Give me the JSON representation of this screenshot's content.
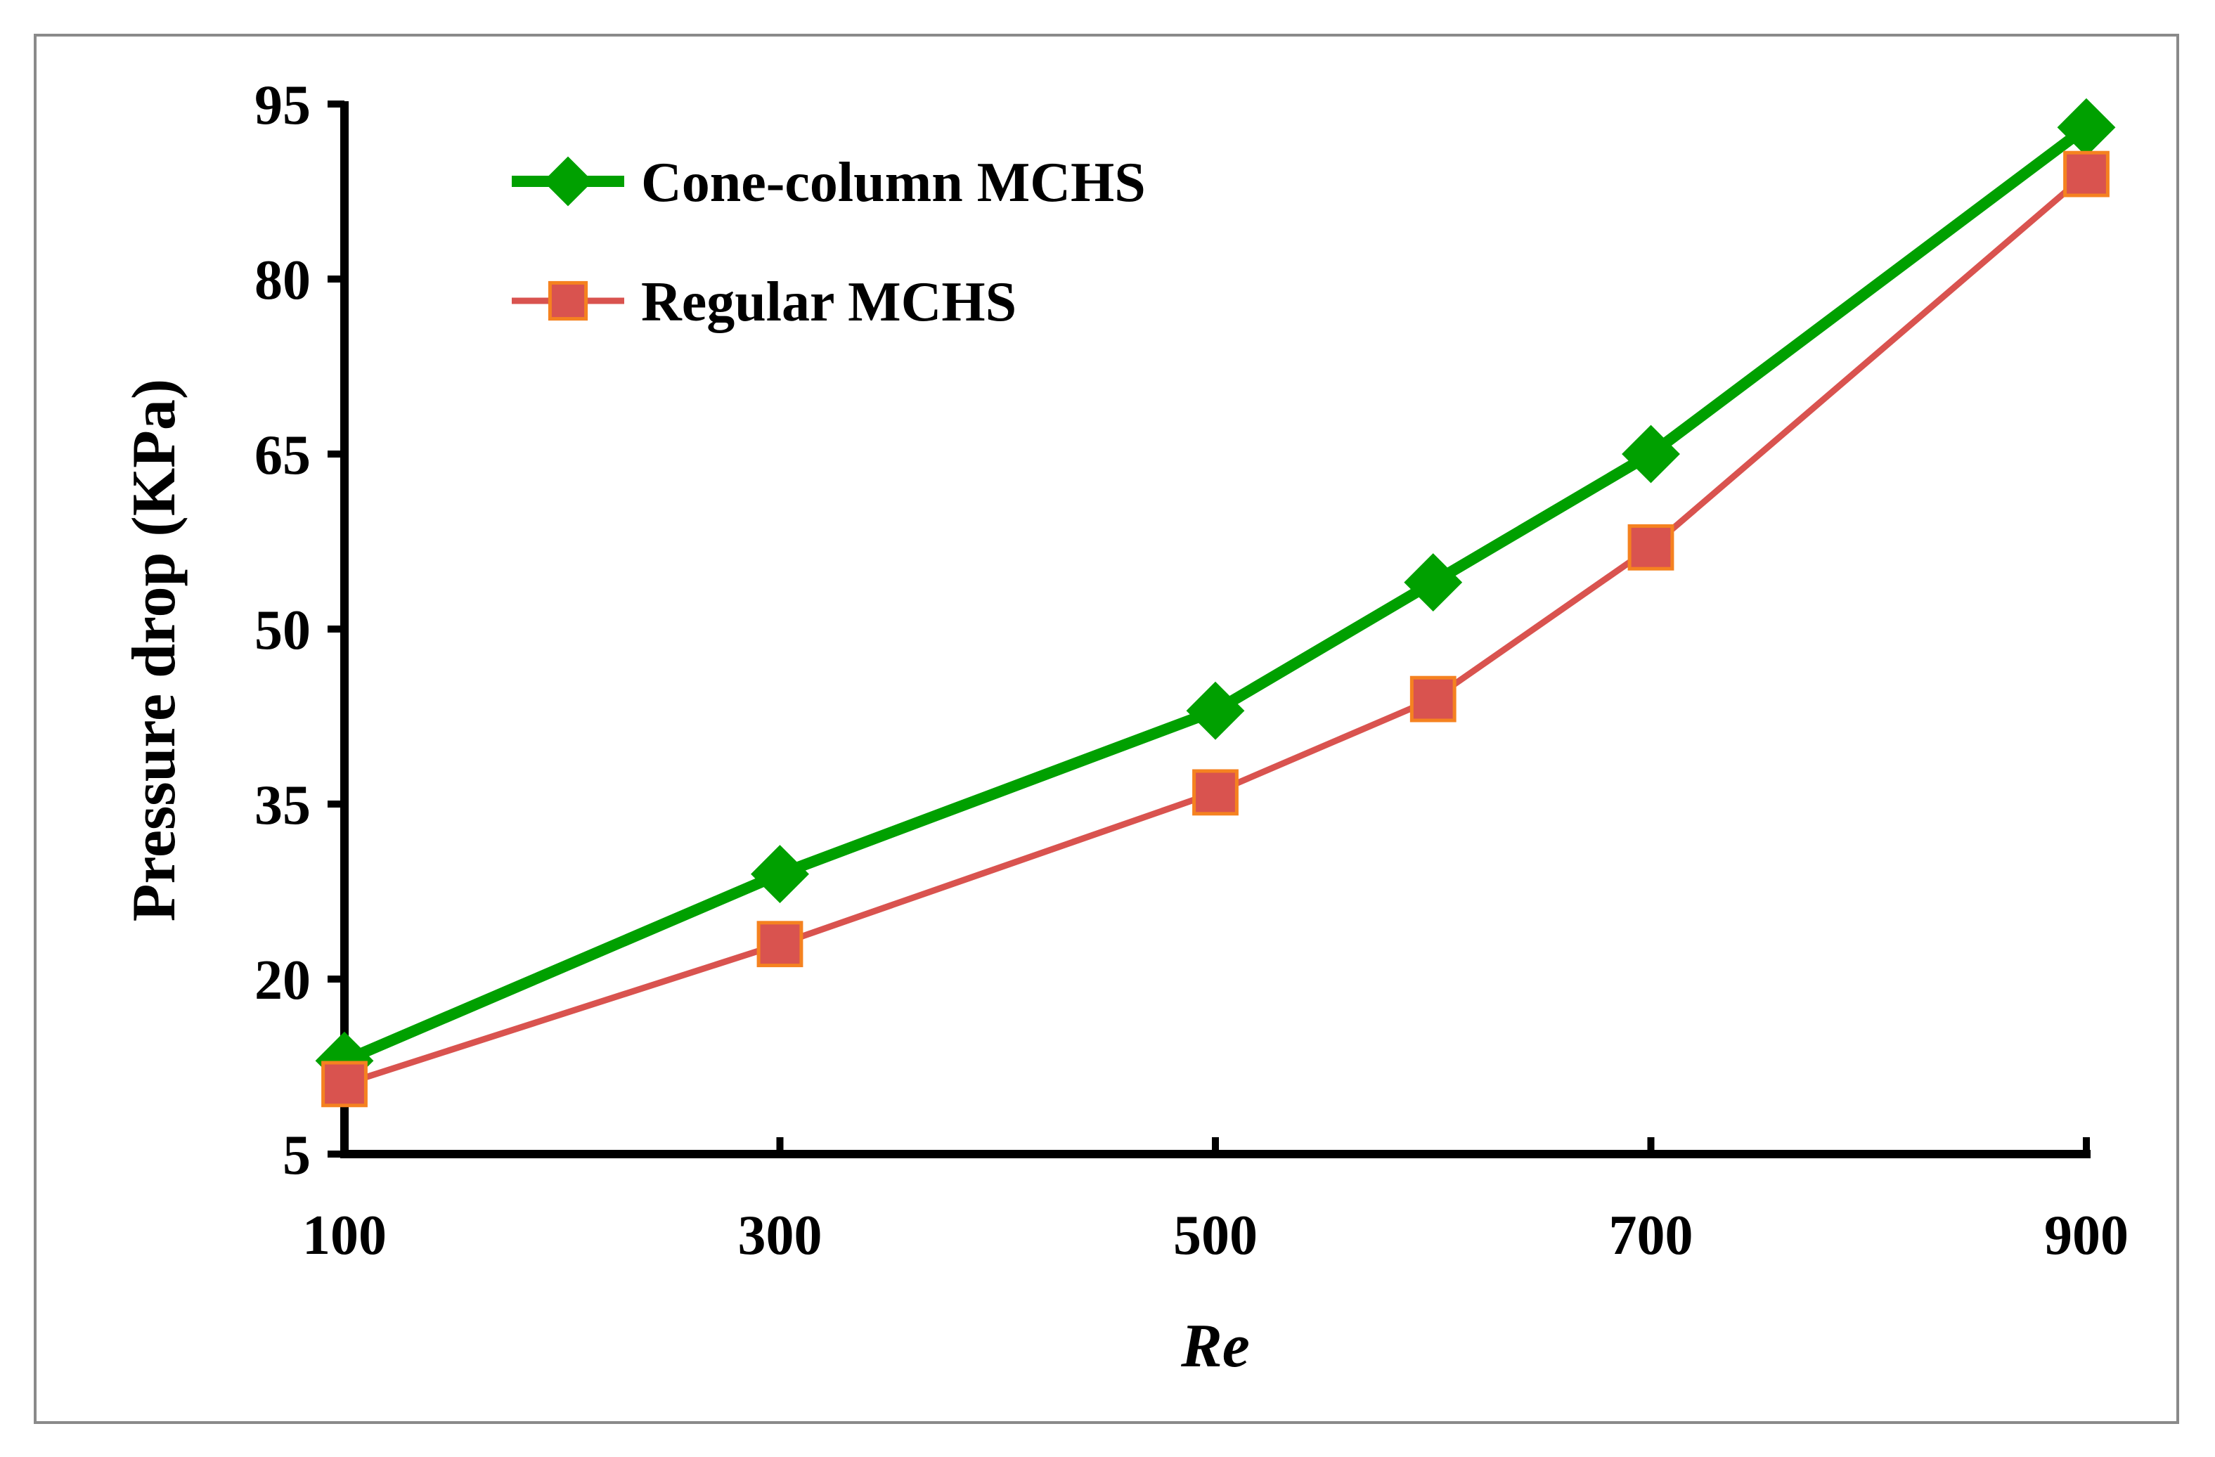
{
  "chart_data": {
    "type": "line",
    "title": "",
    "xlabel": "Re",
    "ylabel": "Pressure drop (KPa)",
    "xlim": [
      100,
      900
    ],
    "ylim": [
      5,
      95
    ],
    "xticks": [
      100,
      300,
      500,
      700,
      900
    ],
    "yticks": [
      5,
      20,
      35,
      50,
      65,
      80,
      95
    ],
    "grid": false,
    "legend_position": "top-left",
    "series": [
      {
        "name": "Cone-column MCHS",
        "color": "#00a000",
        "marker": "diamond",
        "x": [
          100,
          300,
          500,
          600,
          700,
          900
        ],
        "y": [
          13,
          29,
          43,
          54,
          65,
          93
        ]
      },
      {
        "name": "Regular MCHS",
        "color": "#d9534f",
        "marker": "square",
        "marker_edge": "#f58220",
        "x": [
          100,
          300,
          500,
          600,
          700,
          900
        ],
        "y": [
          11,
          23,
          36,
          44,
          57,
          89
        ]
      }
    ]
  }
}
